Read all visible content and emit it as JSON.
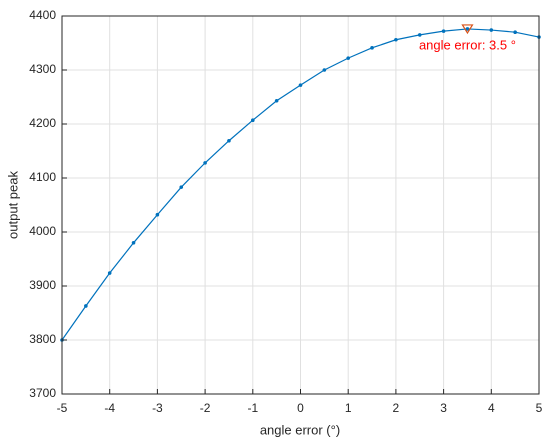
{
  "chart_data": {
    "type": "line",
    "x_label": "angle error (°)",
    "y_label": "output peak",
    "x": [
      -5,
      -4.5,
      -4,
      -3.5,
      -3,
      -2.5,
      -2,
      -1.5,
      -1,
      -0.5,
      0,
      0.5,
      1,
      1.5,
      2,
      2.5,
      3,
      3.5,
      4,
      4.5,
      5
    ],
    "series": [
      {
        "color": "#0072bd",
        "values": [
          3800,
          3863,
          3924,
          3980,
          4032,
          4083,
          4128,
          4169,
          4207,
          4243,
          4272,
          4300,
          4322,
          4341,
          4356,
          4365,
          4372,
          4376,
          4374,
          4370,
          4361
        ]
      }
    ],
    "annotation": {
      "text": "angle error: 3.5 °",
      "x": 3.5,
      "y": 4376,
      "color": "#ff0000",
      "marker_color": "#d95319"
    },
    "xlim": [
      -5,
      5
    ],
    "xticks": [
      -5,
      -4,
      -3,
      -2,
      -1,
      0,
      1,
      2,
      3,
      4,
      5
    ],
    "ylim": [
      3700,
      4400
    ],
    "yticks": [
      3700,
      3800,
      3900,
      4000,
      4100,
      4200,
      4300,
      4400
    ],
    "grid": true
  }
}
